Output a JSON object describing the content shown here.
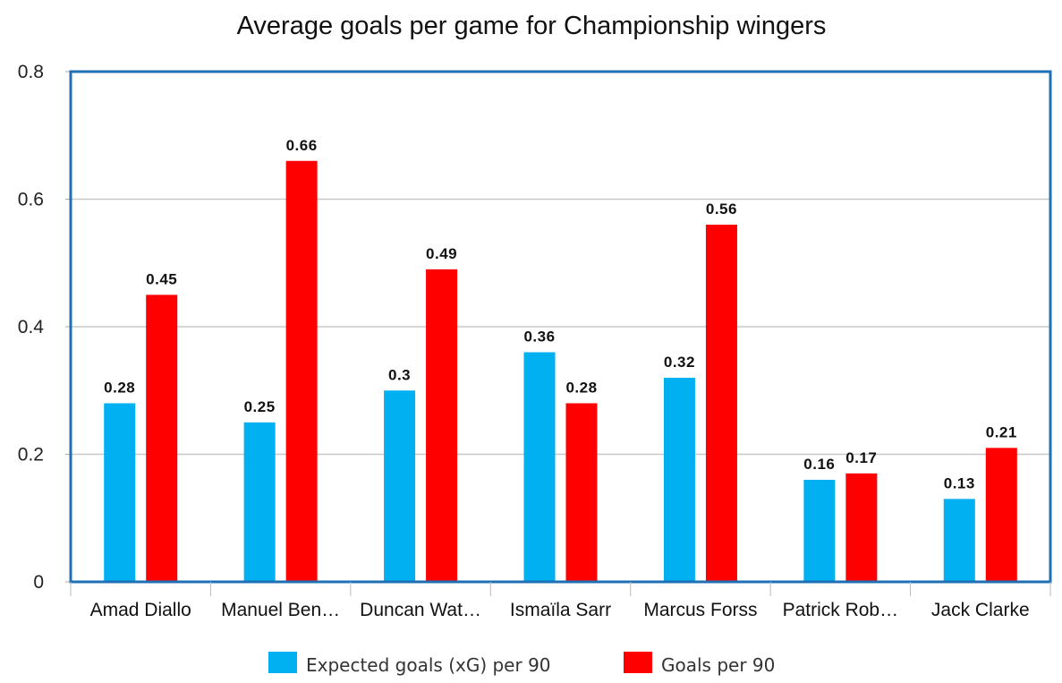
{
  "chart_data": {
    "type": "bar",
    "title": "Average goals per game for Championship wingers",
    "xlabel": "",
    "ylabel": "",
    "ylim": [
      0,
      0.8
    ],
    "yticks": [
      "0",
      "0.2",
      "0.4",
      "0.6",
      "0.8"
    ],
    "categories": [
      "Amad Diallo",
      "Manuel Ben…",
      "Duncan Wat…",
      "Ismaïla Sarr",
      "Marcus Forss",
      "Patrick Rob…",
      "Jack Clarke"
    ],
    "series": [
      {
        "name": "Expected goals (xG) per 90",
        "color": "#00b0f0",
        "values": [
          0.28,
          0.25,
          0.3,
          0.36,
          0.32,
          0.16,
          0.13
        ],
        "labels": [
          "0.28",
          "0.25",
          "0.3",
          "0.36",
          "0.32",
          "0.16",
          "0.13"
        ]
      },
      {
        "name": "Goals per 90",
        "color": "#ff0000",
        "values": [
          0.45,
          0.66,
          0.49,
          0.28,
          0.56,
          0.17,
          0.21
        ],
        "labels": [
          "0.45",
          "0.66",
          "0.49",
          "0.28",
          "0.56",
          "0.17",
          "0.21"
        ]
      }
    ],
    "grid": true,
    "legend": "bottom"
  }
}
